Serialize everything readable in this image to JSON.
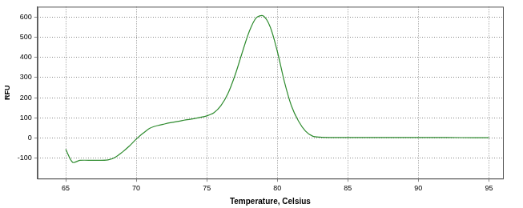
{
  "chart_data": {
    "type": "line",
    "x_label": "Temperature, Celsius",
    "y_label": "RFU",
    "x": [
      65,
      65.5,
      66,
      67,
      68,
      68.5,
      69,
      69.5,
      70,
      70.5,
      71,
      71.5,
      72,
      72.5,
      73,
      73.5,
      74,
      74.5,
      75,
      75.5,
      76,
      76.5,
      77,
      77.5,
      78,
      78.5,
      79,
      79.5,
      80,
      80.5,
      81,
      81.5,
      82,
      82.5,
      83,
      84,
      85,
      86,
      88,
      90,
      92,
      94,
      95
    ],
    "values": [
      -55,
      -120,
      -110,
      -110,
      -108,
      -95,
      -70,
      -40,
      -5,
      25,
      50,
      62,
      70,
      77,
      83,
      90,
      95,
      102,
      110,
      125,
      160,
      220,
      310,
      420,
      525,
      595,
      605,
      550,
      430,
      280,
      160,
      85,
      35,
      10,
      5,
      3,
      3,
      3,
      3,
      3,
      3,
      2,
      2
    ],
    "color": "#2e8b2e",
    "xlim": [
      63,
      96
    ],
    "xticks": [
      65,
      70,
      75,
      80,
      85,
      90,
      95
    ],
    "ylim": [
      -200,
      650
    ],
    "yticks": [
      -100,
      0,
      100,
      200,
      300,
      400,
      500,
      600
    ],
    "grid": true
  }
}
